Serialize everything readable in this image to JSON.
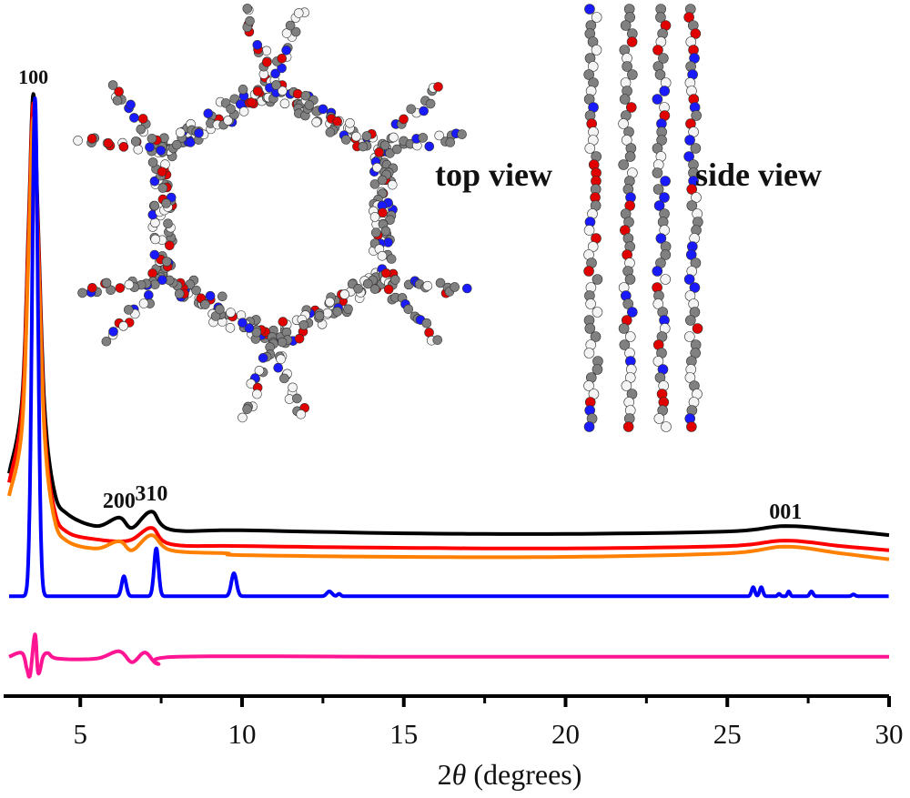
{
  "chart_data": {
    "type": "line",
    "title": "",
    "xlabel": "2θ (degrees)",
    "xlabel_parts": {
      "pre": "2",
      "symbol": "θ",
      "post": " (degrees)"
    },
    "ylabel": "",
    "xlim": [
      2.8,
      30
    ],
    "ylim": [
      0,
      100
    ],
    "xticks": [
      5,
      10,
      15,
      20,
      25,
      30
    ],
    "xtick_labels": [
      "5",
      "10",
      "15",
      "20",
      "25",
      "30"
    ],
    "minor_xticks": [
      7.5,
      12.5,
      17.5,
      22.5,
      27.5
    ],
    "grid": false,
    "y_axis_shown": false,
    "series": [
      {
        "color": "#000000",
        "points": [
          [
            2.8,
            36.8
          ],
          [
            3.2,
            48.9
          ],
          [
            3.4,
            77.4
          ],
          [
            3.55,
            99.5
          ],
          [
            3.7,
            77.4
          ],
          [
            3.9,
            47.4
          ],
          [
            4.2,
            33.8
          ],
          [
            4.6,
            30.1
          ],
          [
            5.5,
            28.1
          ],
          [
            6.2,
            29.5
          ],
          [
            6.6,
            27.8
          ],
          [
            7.2,
            30.5
          ],
          [
            7.8,
            27.5
          ],
          [
            10,
            27.4
          ],
          [
            15,
            26.9
          ],
          [
            20,
            26.8
          ],
          [
            25,
            27.2
          ],
          [
            26.8,
            28.1
          ],
          [
            28.5,
            27.4
          ],
          [
            30,
            26.6
          ]
        ]
      },
      {
        "color": "#ff0000",
        "points": [
          [
            2.8,
            35.3
          ],
          [
            3.2,
            47.4
          ],
          [
            3.4,
            75.9
          ],
          [
            3.55,
            98.0
          ],
          [
            3.7,
            75.9
          ],
          [
            3.9,
            44.4
          ],
          [
            4.2,
            30.8
          ],
          [
            4.6,
            27.1
          ],
          [
            5.5,
            25.9
          ],
          [
            6.5,
            25.7
          ],
          [
            7.2,
            27.8
          ],
          [
            7.8,
            25.1
          ],
          [
            10,
            24.8
          ],
          [
            15,
            24.5
          ],
          [
            20,
            24.4
          ],
          [
            25,
            24.8
          ],
          [
            26.8,
            25.7
          ],
          [
            28.5,
            24.8
          ],
          [
            30,
            24.1
          ]
        ]
      },
      {
        "color": "#ff8000",
        "points": [
          [
            2.8,
            33.1
          ],
          [
            3.2,
            44.4
          ],
          [
            3.4,
            72.9
          ],
          [
            3.55,
            95.5
          ],
          [
            3.7,
            72.9
          ],
          [
            3.9,
            42.9
          ],
          [
            4.2,
            29.3
          ],
          [
            4.6,
            25.6
          ],
          [
            5.5,
            24.4
          ],
          [
            6.2,
            25.6
          ],
          [
            6.6,
            24.1
          ],
          [
            7.2,
            26.6
          ],
          [
            7.8,
            24.1
          ],
          [
            9.5,
            23.6
          ],
          [
            10,
            23.3
          ],
          [
            15,
            23.0
          ],
          [
            20,
            23.0
          ],
          [
            25,
            23.6
          ],
          [
            26.8,
            24.7
          ],
          [
            28.5,
            23.6
          ],
          [
            30,
            22.6
          ]
        ]
      },
      {
        "color": "#0000ff",
        "baseline": 16.5,
        "peaks": [
          [
            3.6,
            98.8,
            0.09
          ],
          [
            6.35,
            19.8,
            0.07
          ],
          [
            7.35,
            24.4,
            0.07
          ],
          [
            9.75,
            20.3,
            0.08
          ],
          [
            12.7,
            17.3,
            0.08
          ],
          [
            13.0,
            16.9,
            0.05
          ],
          [
            25.8,
            18.0,
            0.05
          ],
          [
            26.05,
            18.0,
            0.05
          ],
          [
            26.6,
            16.9,
            0.04
          ],
          [
            26.9,
            17.3,
            0.04
          ],
          [
            27.6,
            17.3,
            0.05
          ],
          [
            28.9,
            16.8,
            0.05
          ]
        ]
      },
      {
        "color": "#ff1493",
        "points": [
          [
            2.8,
            6.5
          ],
          [
            3.2,
            7.1
          ],
          [
            3.35,
            4.5
          ],
          [
            3.45,
            3.5
          ],
          [
            3.6,
            10.2
          ],
          [
            3.7,
            3.8
          ],
          [
            3.85,
            6.5
          ],
          [
            4.0,
            7.1
          ],
          [
            4.3,
            6.2
          ],
          [
            5.5,
            6.2
          ],
          [
            6.2,
            7.4
          ],
          [
            6.6,
            5.6
          ],
          [
            7.0,
            7.2
          ],
          [
            7.4,
            5.3
          ],
          [
            8,
            6.5
          ],
          [
            15,
            6.5
          ],
          [
            22,
            6.5
          ],
          [
            30,
            6.5
          ]
        ]
      }
    ],
    "annotations": [
      {
        "text": "100",
        "x": 3.55
      },
      {
        "text": "200",
        "x": 6.2
      },
      {
        "text": "310",
        "x": 7.2
      },
      {
        "text": "001",
        "x": 26.8
      }
    ],
    "insets": {
      "top_view_label": "top view",
      "side_view_label": "side view",
      "atom_colors": {
        "carbon": "#808080",
        "oxygen": "#e00000",
        "nitrogen": "#1a1aff",
        "hydrogen": "#f4f4f4"
      }
    }
  }
}
